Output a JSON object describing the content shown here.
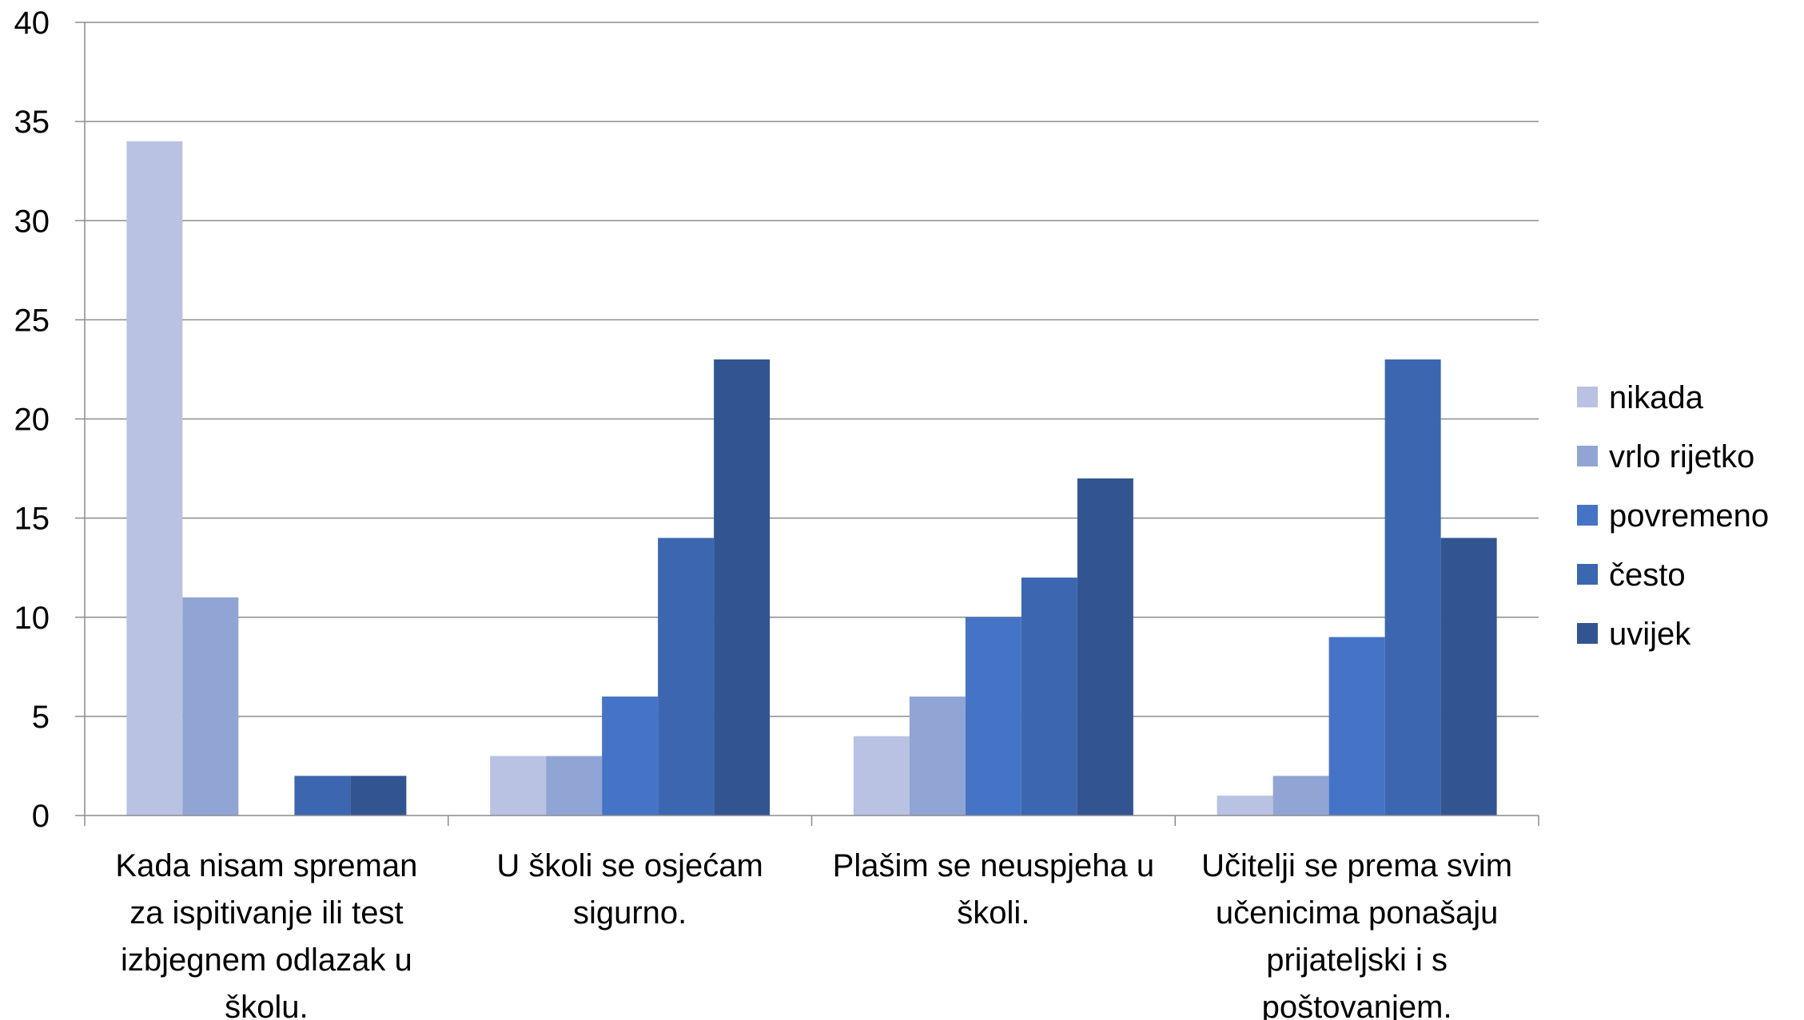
{
  "chart_data": {
    "type": "bar",
    "categories": [
      [
        "Kada nisam spreman",
        "za ispitivanje ili test",
        "izbjegnem odlazak u",
        "školu."
      ],
      [
        "U školi se osjećam",
        "sigurno."
      ],
      [
        "Plašim se neuspjeha u",
        "školi."
      ],
      [
        "Učitelji se prema svim",
        "učenicima ponašaju",
        "prijateljski i s",
        "poštovanjem."
      ]
    ],
    "series": [
      {
        "name": "nikada",
        "color": "#b9c2e2",
        "values": [
          34,
          3,
          4,
          1
        ]
      },
      {
        "name": "vrlo rijetko",
        "color": "#91a5d4",
        "values": [
          11,
          3,
          6,
          2
        ]
      },
      {
        "name": "povremeno",
        "color": "#4574c6",
        "values": [
          0,
          6,
          10,
          9
        ]
      },
      {
        "name": "često",
        "color": "#3c67b0",
        "values": [
          2,
          14,
          12,
          23
        ]
      },
      {
        "name": "uvijek",
        "color": "#325592",
        "values": [
          2,
          23,
          17,
          14
        ]
      }
    ],
    "yticks": [
      "0",
      "5",
      "10",
      "15",
      "20",
      "25",
      "30",
      "35",
      "40"
    ],
    "ylim": [
      0,
      40
    ],
    "grid": true,
    "legend": "right"
  }
}
